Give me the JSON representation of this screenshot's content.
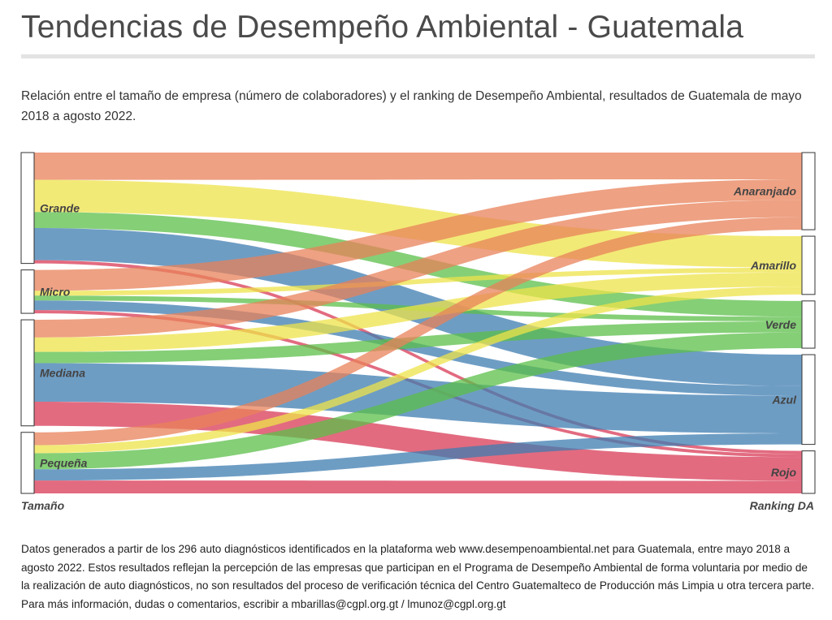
{
  "page": {
    "title": "Tendencias de Desempeño Ambiental - Guatemala",
    "subtitle": "Relación entre el tamaño de empresa (número de colaboradores) y el ranking de Desempeño Ambiental, resultados de Guatemala de mayo 2018 a agosto 2022.",
    "footer": "Datos generados a partir de los 296 auto diagnósticos identificados en la plataforma web www.desempenoambiental.net para Guatemala, entre mayo 2018 a agosto 2022.  Estos resultados reflejan la percepción de las empresas que participan en el Programa de Desempeño Ambiental de forma voluntaria por medio de la realización de auto diagnósticos, no son resultados del proceso de verificación técnica del Centro Guatemalteco de Producción más Limpia u otra tercera parte.  Para más información, dudas o comentarios, escribir a mbarillas@cgpl.org.gt / lmunoz@cgpl.org.gt"
  },
  "chart_data": {
    "type": "sankey",
    "source_axis_label": "Tamaño",
    "target_axis_label": "Ranking DA",
    "sources": [
      "Grande",
      "Micro",
      "Mediana",
      "Pequeña"
    ],
    "targets": [
      "Anaranjado",
      "Amarillo",
      "Verde",
      "Azul",
      "Rojo"
    ],
    "colors": {
      "Anaranjado": "#e8825a",
      "Amarillo": "#ede34a",
      "Verde": "#5cbf4a",
      "Azul": "#3d7cb0",
      "Rojo": "#d83a55"
    },
    "links": [
      {
        "source": "Grande",
        "target": "Anaranjado",
        "value": 17
      },
      {
        "source": "Grande",
        "target": "Amarillo",
        "value": 20
      },
      {
        "source": "Grande",
        "target": "Verde",
        "value": 10
      },
      {
        "source": "Grande",
        "target": "Azul",
        "value": 20
      },
      {
        "source": "Grande",
        "target": "Rojo",
        "value": 2
      },
      {
        "source": "Micro",
        "target": "Anaranjado",
        "value": 13
      },
      {
        "source": "Micro",
        "target": "Amarillo",
        "value": 3
      },
      {
        "source": "Micro",
        "target": "Verde",
        "value": 3
      },
      {
        "source": "Micro",
        "target": "Azul",
        "value": 6
      },
      {
        "source": "Micro",
        "target": "Rojo",
        "value": 2
      },
      {
        "source": "Mediana",
        "target": "Anaranjado",
        "value": 11
      },
      {
        "source": "Mediana",
        "target": "Amarillo",
        "value": 9
      },
      {
        "source": "Mediana",
        "target": "Verde",
        "value": 7
      },
      {
        "source": "Mediana",
        "target": "Azul",
        "value": 24
      },
      {
        "source": "Mediana",
        "target": "Rojo",
        "value": 15
      },
      {
        "source": "Pequeña",
        "target": "Anaranjado",
        "value": 8
      },
      {
        "source": "Pequeña",
        "target": "Amarillo",
        "value": 5
      },
      {
        "source": "Pequeña",
        "target": "Verde",
        "value": 10
      },
      {
        "source": "Pequeña",
        "target": "Azul",
        "value": 7
      },
      {
        "source": "Pequeña",
        "target": "Rojo",
        "value": 8
      }
    ]
  }
}
